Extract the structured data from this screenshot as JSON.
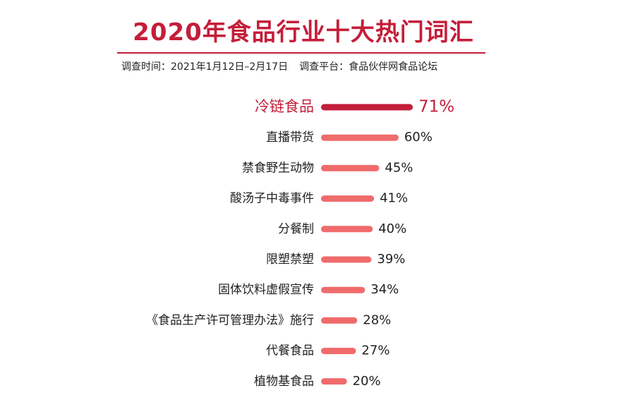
{
  "header": {
    "title": "2020年食品行业十大热门词汇",
    "survey_time": "调查时间：2021年1月12日–2月17日",
    "survey_platform": "调查平台：食品伙伴网食品论坛"
  },
  "chart_data": {
    "type": "bar",
    "orientation": "horizontal",
    "title": "2020年食品行业十大热门词汇",
    "categories": [
      "冷链食品",
      "直播带货",
      "禁食野生动物",
      "酸汤子中毒事件",
      "分餐制",
      "限塑禁塑",
      "固体饮料虚假宣传",
      "《食品生产许可管理办法》施行",
      "代餐食品",
      "植物基食品"
    ],
    "values": [
      71,
      60,
      45,
      41,
      40,
      39,
      34,
      28,
      27,
      20
    ],
    "value_labels": [
      "71%",
      "60%",
      "45%",
      "41%",
      "40%",
      "39%",
      "34%",
      "28%",
      "27%",
      "20%"
    ],
    "unit": "%",
    "highlight_index": 0,
    "grid": false,
    "legend": "none",
    "colors": {
      "highlight": "#c41e3a",
      "bar": "#f06b6b",
      "title": "#c41e3a",
      "label": "#222222"
    }
  }
}
